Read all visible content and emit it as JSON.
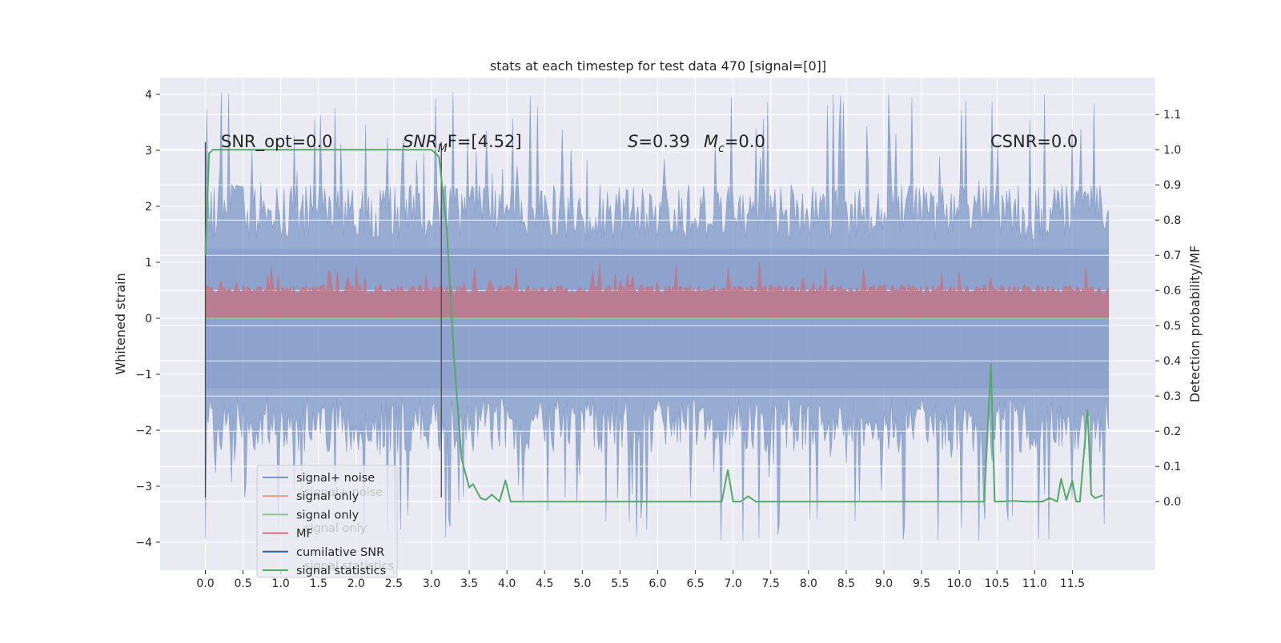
{
  "chart_data": {
    "type": "line",
    "title": "stats at each timestep for test data 470 [signal=[0]]",
    "xlabel": "",
    "ylabel": "Whitened strain",
    "ylabel_right": "Detection probability/MF",
    "x_ticks": [
      "0.0",
      "0.5",
      "1.0",
      "1.5",
      "2.0",
      "2.5",
      "3.0",
      "3.5",
      "4.0",
      "4.5",
      "5.0",
      "5.5",
      "6.0",
      "6.5",
      "7.0",
      "7.5",
      "8.0",
      "8.5",
      "9.0",
      "9.5",
      "10.0",
      "10.5",
      "11.0",
      "11.5"
    ],
    "y_ticks_left": [
      "4",
      "3",
      "2",
      "1",
      "0",
      "−1",
      "−2",
      "−3",
      "−4"
    ],
    "y_ticks_right": [
      "1.1",
      "1.0",
      "0.9",
      "0.8",
      "0.7",
      "0.6",
      "0.5",
      "0.4",
      "0.3",
      "0.2",
      "0.1",
      "0.0"
    ],
    "xlim": [
      -0.6,
      12.6
    ],
    "ylim_left": [
      -4.5,
      4.3
    ],
    "ylim_right": [
      -0.195,
      1.205
    ],
    "grid": true,
    "background": "#eaeaf2",
    "legend_position": "lower-left",
    "legend": [
      {
        "label": "signal+ noise",
        "color": "#7893c4"
      },
      {
        "label": "signal only",
        "color": "#dd9e81"
      },
      {
        "label": "signal only",
        "color": "#8fc797"
      },
      {
        "label": "MF",
        "color": "#c96f7c"
      },
      {
        "label": "cumilative SNR",
        "color": "#2f5fa8"
      },
      {
        "label": "signal statistics",
        "color": "#55a868"
      }
    ],
    "legend_ghost_labels": [
      "signal+ noise",
      "signal only",
      "signal statistics"
    ],
    "annotations": {
      "snr_opt": "SNR_opt=0.0",
      "snr_mf_name": "SNR",
      "snr_mf_sub": "M",
      "snr_mf_value": "F=[4.52]",
      "s_name": "S",
      "s_value": "=0.39",
      "mc_name": "M",
      "mc_sub": "c",
      "mc_value": "=0.0",
      "csnr": "CSNR=0.0"
    },
    "vertical_markers": [
      0.0,
      3.13
    ],
    "noise_envelope": {
      "x_range": [
        0.0,
        11.98
      ],
      "upper_band": 1.85,
      "lower_band": -1.85,
      "upper_peak": 4.05,
      "lower_peak": -4.0,
      "color": "#7893c4"
    },
    "mf_band": {
      "x_range": [
        0.0,
        11.98
      ],
      "low": 0.0,
      "high": 0.5,
      "peak": 1.0,
      "color": "#c96f7c"
    },
    "series": [
      {
        "name": "signal statistics",
        "axis": "right",
        "color": "#55a868",
        "x": [
          0.0,
          0.05,
          0.1,
          0.3,
          0.5,
          1.0,
          1.5,
          2.0,
          2.5,
          3.0,
          3.1,
          3.2,
          3.3,
          3.4,
          3.5,
          3.55,
          3.65,
          3.72,
          3.8,
          3.9,
          3.98,
          4.05,
          4.1,
          4.5,
          5.0,
          5.5,
          6.0,
          6.5,
          6.85,
          6.93,
          7.0,
          7.1,
          7.2,
          7.3,
          7.5,
          8.0,
          8.5,
          9.0,
          9.5,
          10.0,
          10.33,
          10.42,
          10.47,
          10.55,
          10.7,
          10.9,
          11.1,
          11.2,
          11.3,
          11.35,
          11.42,
          11.5,
          11.55,
          11.6,
          11.7,
          11.75,
          11.8,
          11.9
        ],
        "values": [
          0.7,
          0.99,
          1.0,
          1.0,
          1.0,
          1.0,
          1.0,
          1.0,
          1.0,
          1.0,
          0.98,
          0.78,
          0.4,
          0.12,
          0.04,
          0.05,
          0.01,
          0.005,
          0.02,
          0.0,
          0.06,
          0.0,
          0.0,
          0.0,
          0.0,
          0.0,
          0.0,
          0.0,
          0.0,
          0.09,
          0.0,
          0.0,
          0.015,
          0.0,
          0.0,
          0.0,
          0.0,
          0.0,
          0.0,
          0.0,
          0.0,
          0.39,
          0.0,
          0.0,
          0.002,
          0.0,
          0.0,
          0.01,
          0.0,
          0.065,
          0.005,
          0.06,
          0.0,
          0.0,
          0.26,
          0.02,
          0.01,
          0.018
        ]
      }
    ]
  }
}
